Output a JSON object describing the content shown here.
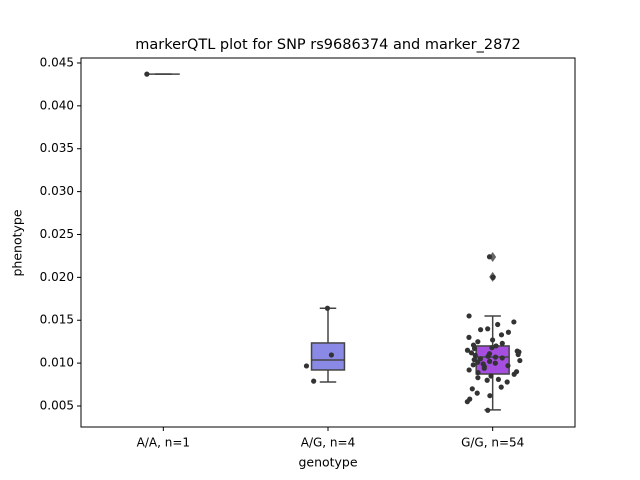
{
  "chart_data": {
    "type": "box",
    "title": "markerQTL plot for SNP rs9686374 and marker_2872",
    "xlabel": "genotype",
    "ylabel": "phenotype",
    "categories": [
      "A/A, n=1",
      "A/G, n=4",
      "G/G, n=54"
    ],
    "ylim": [
      0.00255,
      0.04558
    ],
    "yticks": [
      0.005,
      {
        "value": 0.01,
        "label": "0.010"
      },
      0.015,
      {
        "value": 0.02,
        "label": "0.020"
      },
      0.025,
      {
        "value": 0.03,
        "label": "0.030"
      },
      0.035,
      {
        "value": 0.04,
        "label": "0.040"
      },
      0.045
    ],
    "boxes": [
      {
        "color": "#8a8ae6",
        "q1": 0.0437,
        "median": 0.0437,
        "q3": 0.0437,
        "whislo": 0.0437,
        "whishi": 0.0437,
        "fliers": [],
        "points": [
          0.0437
        ]
      },
      {
        "color": "#8a8ae6",
        "q1": 0.0092,
        "median": 0.01036,
        "q3": 0.01235,
        "whislo": 0.0078,
        "whishi": 0.0164,
        "fliers": [],
        "points": [
          0.0164,
          0.01095,
          0.00967,
          0.0079
        ]
      },
      {
        "color": "#a64ee0",
        "q1": 0.00873,
        "median": 0.01071,
        "q3": 0.012,
        "whislo": 0.00455,
        "whishi": 0.0155,
        "fliers": [
          0.02238,
          0.02005
        ],
        "points": [
          0.0224,
          0.02,
          0.0155,
          0.0148,
          0.0145,
          0.014,
          0.0139,
          0.0136,
          0.0133,
          0.013,
          0.0127,
          0.0125,
          0.0123,
          0.0121,
          0.012,
          0.0118,
          0.0117,
          0.0115,
          0.0114,
          0.0113,
          0.0112,
          0.0111,
          0.011,
          0.0109,
          0.0108,
          0.0107,
          0.0106,
          0.0105,
          0.0104,
          0.0103,
          0.0102,
          0.0101,
          0.01,
          0.0099,
          0.0098,
          0.0097,
          0.0096,
          0.0094,
          0.0092,
          0.009,
          0.0089,
          0.0087,
          0.0085,
          0.0083,
          0.0081,
          0.008,
          0.0078,
          0.0072,
          0.007,
          0.0065,
          0.0062,
          0.0058,
          0.0055,
          0.0045
        ]
      }
    ]
  }
}
